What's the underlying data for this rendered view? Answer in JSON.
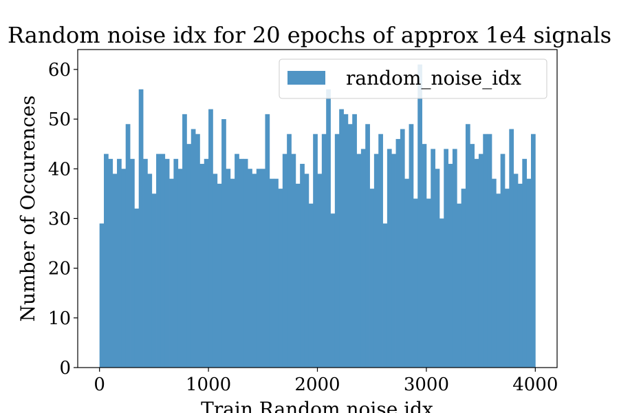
{
  "chart_data": {
    "type": "bar",
    "title": "Random noise idx for 20 epochs of approx 1e4 signals",
    "xlabel": "Train Random noise idx",
    "ylabel": "Number of Occurences",
    "xlim": [
      -200,
      4200
    ],
    "ylim": [
      0,
      64
    ],
    "xticks": [
      0,
      1000,
      2000,
      3000,
      4000
    ],
    "yticks": [
      0,
      10,
      20,
      30,
      40,
      50,
      60
    ],
    "bin_start": 0,
    "bin_width": 40,
    "color": "#4f94c4",
    "legend_position": "top-right",
    "series": [
      {
        "name": "random_noise_idx",
        "values": [
          29,
          43,
          42,
          39,
          42,
          40,
          49,
          42,
          32,
          56,
          42,
          39,
          35,
          43,
          43,
          42,
          38,
          42,
          40,
          51,
          45,
          48,
          47,
          41,
          42,
          52,
          39,
          37,
          50,
          40,
          38,
          43,
          42,
          42,
          40,
          39,
          40,
          40,
          51,
          38,
          38,
          36,
          43,
          47,
          43,
          37,
          41,
          39,
          33,
          47,
          39,
          47,
          56,
          31,
          47,
          52,
          51,
          49,
          51,
          43,
          44,
          49,
          36,
          43,
          47,
          29,
          44,
          43,
          46,
          48,
          38,
          49,
          34,
          61,
          45,
          34,
          44,
          40,
          30,
          44,
          41,
          44,
          33,
          36,
          49,
          45,
          42,
          43,
          47,
          47,
          38,
          35,
          43,
          36,
          48,
          39,
          37,
          42,
          38,
          47
        ]
      }
    ]
  }
}
